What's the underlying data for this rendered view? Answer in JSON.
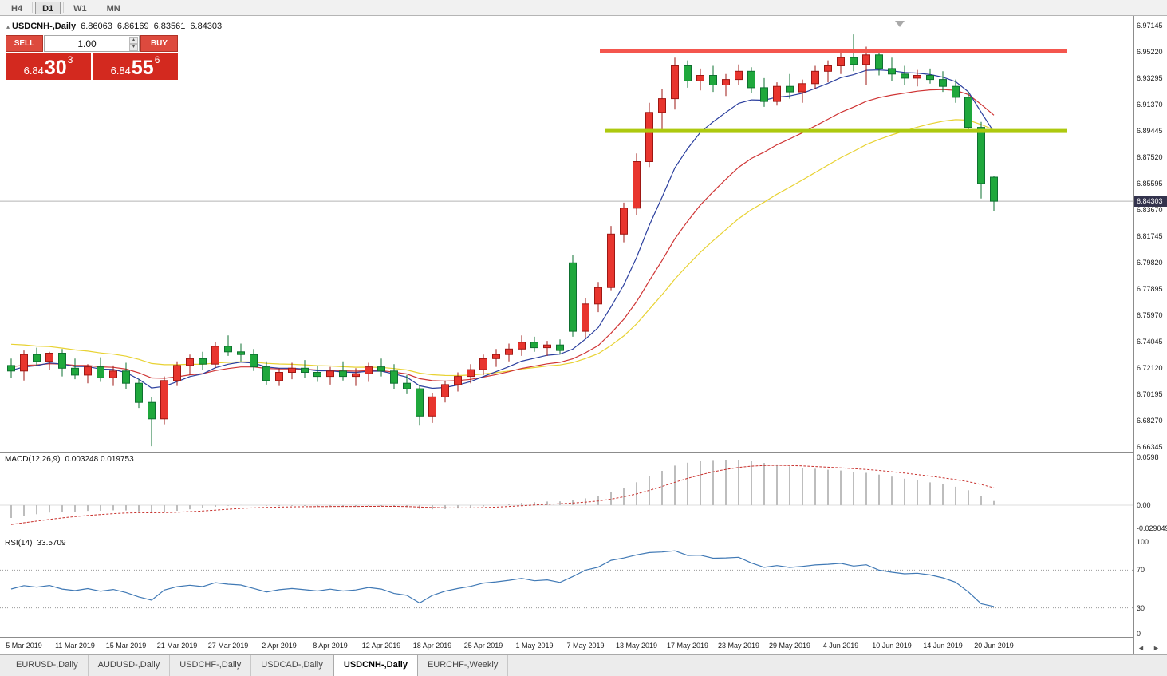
{
  "toolbar": {
    "timeframes": [
      "H4",
      "D1",
      "W1",
      "MN"
    ],
    "active": "D1"
  },
  "chart": {
    "symbol_header": "USDCNH-,Daily",
    "ohlc": {
      "open": "6.86063",
      "high": "6.86169",
      "low": "6.83561",
      "close": "6.84303"
    },
    "current_price_tag": "6.84303",
    "trade_panel": {
      "sell_label": "SELL",
      "buy_label": "BUY",
      "volume": "1.00",
      "bid": {
        "main": "6.84",
        "pips": "30",
        "point": "3"
      },
      "ask": {
        "main": "6.84",
        "pips": "55",
        "point": "6"
      }
    }
  },
  "macd": {
    "label": "MACD(12,26,9)",
    "values": "0.003248 0.019753",
    "axis": [
      "0.0598",
      "0.00",
      "-0.029049"
    ]
  },
  "rsi": {
    "label": "RSI(14)",
    "value": "33.5709",
    "axis": [
      "100",
      "70",
      "30",
      "0"
    ]
  },
  "tabs": {
    "items": [
      "EURUSD-,Daily",
      "AUDUSD-,Daily",
      "USDCHF-,Daily",
      "USDCAD-,Daily",
      "USDCNH-,Daily",
      "EURCHF-,Weekly"
    ],
    "active": "USDCNH-,Daily"
  },
  "icons": {
    "collapse_marker": "▴",
    "scroll_left": "◄",
    "scroll_right": "►",
    "spin_up": "▴",
    "spin_down": "▾"
  },
  "colors": {
    "bull": "#e8352e",
    "bull_dark": "#9e1713",
    "bear": "#1fa83c",
    "bear_dark": "#0e7030",
    "ma_fast": "#2b3f9e",
    "ma_mid": "#cf3434",
    "ma_slow": "#e8d232",
    "macd_bar": "#bdbdbd",
    "macd_signal": "#c8302c",
    "rsi": "#4079b5",
    "resistance": "#f4564e",
    "support": "#adc90f",
    "price_line": "#b4b4b4"
  },
  "chart_data": {
    "type": "candlestick",
    "symbol": "USDCNH",
    "timeframe": "Daily",
    "current_price": 6.84303,
    "levels": {
      "resistance": 6.9527,
      "support": 6.8944
    },
    "price_axis": [
      "6.97145",
      "6.95220",
      "6.93295",
      "6.91370",
      "6.89445",
      "6.87520",
      "6.85595",
      "6.83670",
      "6.81745",
      "6.79820",
      "6.77895",
      "6.75970",
      "6.74045",
      "6.72120",
      "6.70195",
      "6.68270",
      "6.66345"
    ],
    "x_labels": [
      {
        "i": 1,
        "t": "5 Mar 2019"
      },
      {
        "i": 5,
        "t": "11 Mar 2019"
      },
      {
        "i": 9,
        "t": "15 Mar 2019"
      },
      {
        "i": 13,
        "t": "21 Mar 2019"
      },
      {
        "i": 17,
        "t": "27 Mar 2019"
      },
      {
        "i": 21,
        "t": "2 Apr 2019"
      },
      {
        "i": 25,
        "t": "8 Apr 2019"
      },
      {
        "i": 29,
        "t": "12 Apr 2019"
      },
      {
        "i": 33,
        "t": "18 Apr 2019"
      },
      {
        "i": 37,
        "t": "25 Apr 2019"
      },
      {
        "i": 41,
        "t": "1 May 2019"
      },
      {
        "i": 45,
        "t": "7 May 2019"
      },
      {
        "i": 49,
        "t": "13 May 2019"
      },
      {
        "i": 53,
        "t": "17 May 2019"
      },
      {
        "i": 57,
        "t": "23 May 2019"
      },
      {
        "i": 61,
        "t": "29 May 2019"
      },
      {
        "i": 65,
        "t": "4 Jun 2019"
      },
      {
        "i": 69,
        "t": "10 Jun 2019"
      },
      {
        "i": 73,
        "t": "14 Jun 2019"
      },
      {
        "i": 77,
        "t": "20 Jun 2019"
      }
    ],
    "indicators": {
      "ma_fast": {
        "period": 8
      },
      "ma_mid": {
        "period": 17
      },
      "ma_slow": {
        "period": 28
      },
      "macd": {
        "fast": 12,
        "slow": 26,
        "signal": 9
      },
      "rsi": {
        "period": 14,
        "levels": [
          70,
          30
        ]
      }
    },
    "candles_ohlc": [
      [
        6.723,
        6.728,
        6.714,
        6.719
      ],
      [
        6.719,
        6.734,
        6.712,
        6.731
      ],
      [
        6.731,
        6.736,
        6.723,
        6.726
      ],
      [
        6.726,
        6.733,
        6.72,
        6.732
      ],
      [
        6.732,
        6.735,
        6.715,
        6.721
      ],
      [
        6.721,
        6.728,
        6.713,
        6.716
      ],
      [
        6.716,
        6.724,
        6.71,
        6.722
      ],
      [
        6.722,
        6.729,
        6.711,
        6.714
      ],
      [
        6.714,
        6.723,
        6.708,
        6.719
      ],
      [
        6.719,
        6.725,
        6.706,
        6.71
      ],
      [
        6.71,
        6.713,
        6.692,
        6.696
      ],
      [
        6.696,
        6.7,
        6.664,
        6.684
      ],
      [
        6.684,
        6.715,
        6.68,
        6.712
      ],
      [
        6.712,
        6.726,
        6.708,
        6.723
      ],
      [
        6.723,
        6.731,
        6.716,
        6.728
      ],
      [
        6.728,
        6.733,
        6.72,
        6.724
      ],
      [
        6.724,
        6.74,
        6.721,
        6.737
      ],
      [
        6.737,
        6.745,
        6.73,
        6.733
      ],
      [
        6.733,
        6.739,
        6.726,
        6.731
      ],
      [
        6.731,
        6.735,
        6.719,
        6.722
      ],
      [
        6.722,
        6.726,
        6.709,
        6.712
      ],
      [
        6.712,
        6.721,
        6.708,
        6.718
      ],
      [
        6.718,
        6.725,
        6.713,
        6.721
      ],
      [
        6.721,
        6.727,
        6.714,
        6.718
      ],
      [
        6.718,
        6.723,
        6.711,
        6.715
      ],
      [
        6.715,
        6.722,
        6.709,
        6.719
      ],
      [
        6.719,
        6.726,
        6.712,
        6.715
      ],
      [
        6.715,
        6.721,
        6.708,
        6.717
      ],
      [
        6.717,
        6.725,
        6.711,
        6.722
      ],
      [
        6.722,
        6.728,
        6.715,
        6.719
      ],
      [
        6.719,
        6.724,
        6.706,
        6.71
      ],
      [
        6.71,
        6.716,
        6.702,
        6.706
      ],
      [
        6.706,
        6.709,
        6.679,
        6.686
      ],
      [
        6.686,
        6.703,
        6.681,
        6.7
      ],
      [
        6.7,
        6.712,
        6.696,
        6.709
      ],
      [
        6.709,
        6.718,
        6.704,
        6.715
      ],
      [
        6.715,
        6.724,
        6.71,
        6.72
      ],
      [
        6.72,
        6.731,
        6.716,
        6.728
      ],
      [
        6.728,
        6.735,
        6.722,
        6.731
      ],
      [
        6.731,
        6.739,
        6.726,
        6.735
      ],
      [
        6.735,
        6.745,
        6.73,
        6.74
      ],
      [
        6.74,
        6.744,
        6.733,
        6.736
      ],
      [
        6.736,
        6.741,
        6.73,
        6.738
      ],
      [
        6.738,
        6.742,
        6.731,
        6.734
      ],
      [
        6.798,
        6.804,
        6.744,
        6.748
      ],
      [
        6.748,
        6.772,
        6.743,
        6.768
      ],
      [
        6.768,
        6.784,
        6.762,
        6.78
      ],
      [
        6.78,
        6.825,
        6.778,
        6.819
      ],
      [
        6.819,
        6.842,
        6.813,
        6.838
      ],
      [
        6.838,
        6.878,
        6.833,
        6.872
      ],
      [
        6.872,
        6.915,
        6.868,
        6.908
      ],
      [
        6.908,
        6.925,
        6.895,
        6.918
      ],
      [
        6.918,
        6.948,
        6.91,
        6.942
      ],
      [
        6.942,
        6.946,
        6.926,
        6.931
      ],
      [
        6.931,
        6.94,
        6.924,
        6.935
      ],
      [
        6.935,
        6.942,
        6.923,
        6.928
      ],
      [
        6.928,
        6.936,
        6.92,
        6.932
      ],
      [
        6.932,
        6.943,
        6.928,
        6.938
      ],
      [
        6.938,
        6.941,
        6.922,
        6.926
      ],
      [
        6.926,
        6.933,
        6.912,
        6.916
      ],
      [
        6.916,
        6.93,
        6.913,
        6.927
      ],
      [
        6.927,
        6.936,
        6.918,
        6.923
      ],
      [
        6.923,
        6.932,
        6.915,
        6.929
      ],
      [
        6.929,
        6.942,
        6.925,
        6.938
      ],
      [
        6.938,
        6.946,
        6.93,
        6.942
      ],
      [
        6.942,
        6.952,
        6.936,
        6.948
      ],
      [
        6.948,
        6.965,
        6.938,
        6.943
      ],
      [
        6.943,
        6.956,
        6.928,
        6.95
      ],
      [
        6.95,
        6.954,
        6.935,
        6.94
      ],
      [
        6.94,
        6.948,
        6.931,
        6.936
      ],
      [
        6.936,
        6.942,
        6.928,
        6.933
      ],
      [
        6.933,
        6.939,
        6.927,
        6.935
      ],
      [
        6.935,
        6.94,
        6.929,
        6.932
      ],
      [
        6.932,
        6.938,
        6.923,
        6.927
      ],
      [
        6.927,
        6.932,
        6.915,
        6.919
      ],
      [
        6.919,
        6.923,
        6.893,
        6.897
      ],
      [
        6.897,
        6.901,
        6.845,
        6.856
      ],
      [
        6.86063,
        6.86169,
        6.83561,
        6.84303
      ]
    ]
  }
}
